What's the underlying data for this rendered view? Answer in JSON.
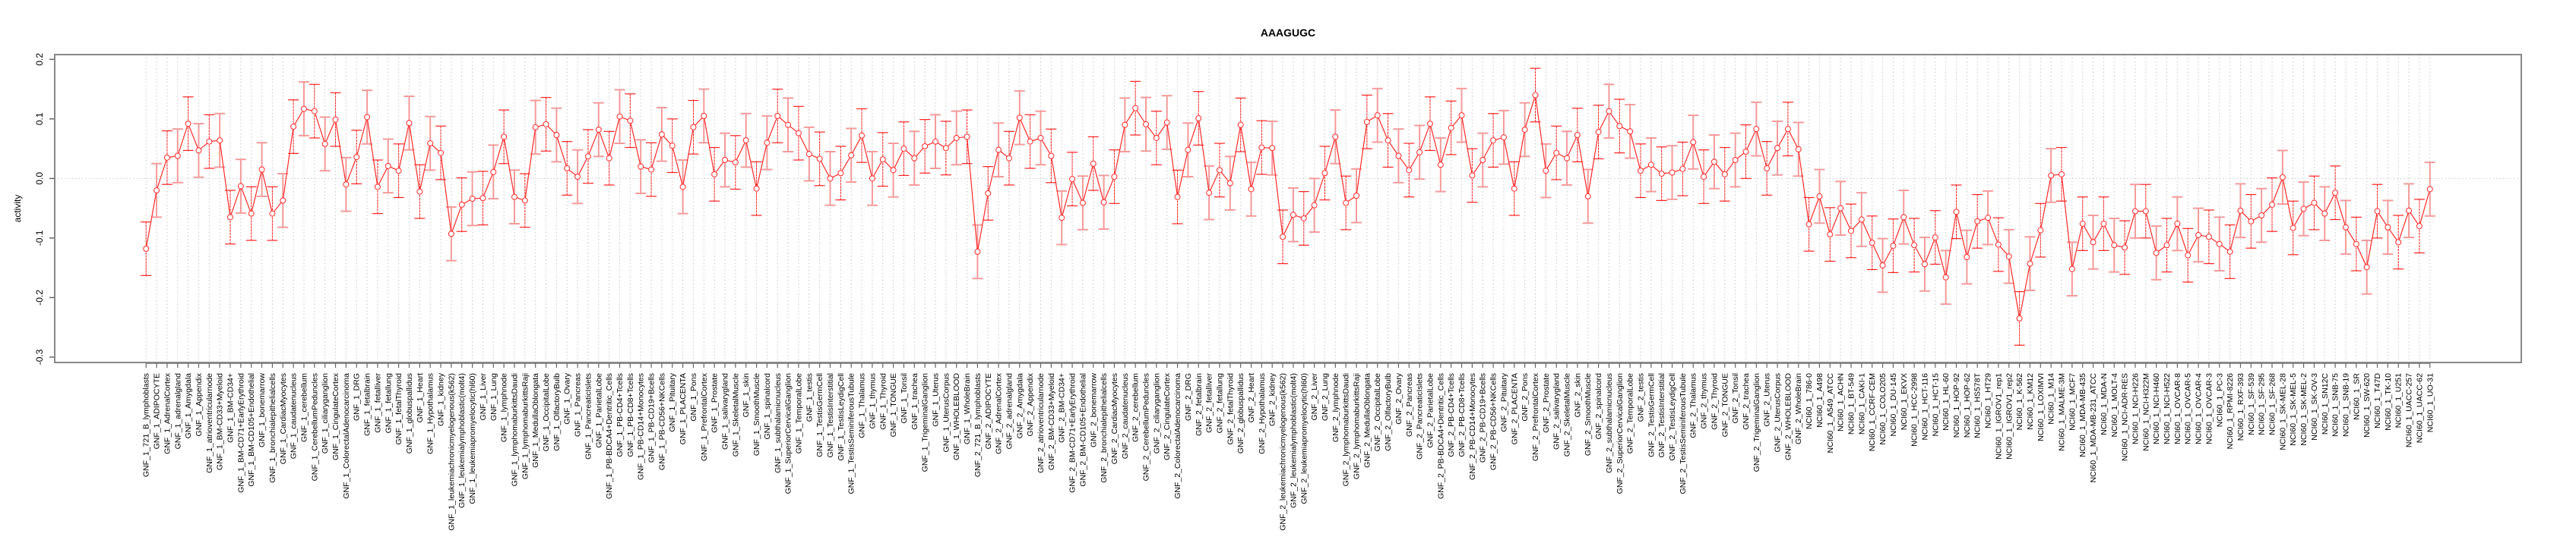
{
  "chart_data": {
    "type": "line",
    "title": "AAAGUGC",
    "xlabel": "",
    "ylabel": "activity",
    "ylim": [
      -0.309,
      0.208
    ],
    "yticks": [
      -0.3,
      -0.2,
      -0.1,
      0.0,
      0.1,
      0.2
    ],
    "ytick_labels": [
      "-0.3",
      "-0.2",
      "-0.1",
      "0.0",
      "0.1",
      "0.2"
    ],
    "grid": "vertical dotted at every category; horizontal dotted at 0",
    "legend": "none",
    "error_halfwidth": 0.045,
    "colors": {
      "line": "#FF2A2A",
      "errorbar_light": "#F49A9A",
      "errorbar_dark": "#FF2020",
      "grid": "#C8C8C8",
      "frame": "#888888"
    },
    "categories": [
      "GNF_1_721_B_lymphoblasts",
      "GNF_1_ADIPOCYTE",
      "GNF_1_AdrenalCortex",
      "GNF_1_adrenalgland",
      "GNF_1_Amygdala",
      "GNF_1_Appendix",
      "GNF_1_atrioventricularnode",
      "GNF_1_BM-CD33+Myeloid",
      "GNF_1_BM-CD34+",
      "GNF_1_BM-CD71+EarlyErythroid",
      "GNF_1_BM-CD105+Endothelial",
      "GNF_1_bonemarrow",
      "GNF_1_bronchialepithelialcells",
      "GNF_1_CardiacMyocytes",
      "GNF_1_caudatenucleus",
      "GNF_1_cerebellum",
      "GNF_1_CerebellumPeduncles",
      "GNF_1_ciliaryganglion",
      "GNF_1_CingulateCortex",
      "GNF_1_ColorectalAdenocarcinoma",
      "GNF_1_DRG",
      "GNF_1_fetalbrain",
      "GNF_1_fetalliver",
      "GNF_1_fetallung",
      "GNF_1_fetalThyroid",
      "GNF_1_globuspallidus",
      "GNF_1_Heart",
      "GNF_1_Hypothalamus",
      "GNF_1_kidney",
      "GNF_1_leukemiachronicmyelogenous(k562)",
      "GNF_1_leukemialymphoblastic(molt4)",
      "GNF_1_leukemiapromyelocytic(hl60)",
      "GNF_1_Liver",
      "GNF_1_Lung",
      "GNF_1_lymphnode",
      "GNF_1_lymphomaburkittsDaudi",
      "GNF_1_lymphomaburkittsRaji",
      "GNF_1_MedullaOblongata",
      "GNF_1_OccipitalLobe",
      "GNF_1_OlfactoryBulb",
      "GNF_1_Ovary",
      "GNF_1_Pancreas",
      "GNF_1_PancreaticIslets",
      "GNF_1_ParietalLobe",
      "GNF_1_PB-BDCA4+Dentritic_Cells",
      "GNF_1_PB-CD4+Tcells",
      "GNF_1_PB-CD8+Tcells",
      "GNF_1_PB-CD14+Monocytes",
      "GNF_1_PB-CD19+Bcells",
      "GNF_1_PB-CD56+NKCells",
      "GNF_1_Pituitary",
      "GNF_1_PLACENTA",
      "GNF_1_Pons",
      "GNF_1_PrefrontalCortex",
      "GNF_1_Prostate",
      "GNF_1_salivarygland",
      "GNF_1_SkeletalMuscle",
      "GNF_1_skin",
      "GNF_1_SmoothMuscle",
      "GNF_1_spinalcord",
      "GNF_1_subthalamicnucleus",
      "GNF_1_SuperiorCervicalGanglion",
      "GNF_1_TemporalLobe",
      "GNF_1_testis",
      "GNF_1_TestisGermCell",
      "GNF_1_TestisInterstitial",
      "GNF_1_TestisLeydigCell",
      "GNF_1_TestisSeminiferousTubule",
      "GNF_1_Thalamus",
      "GNF_1_thymus",
      "GNF_1_Thyroid",
      "GNF_1_TONGUE",
      "GNF_1_Tonsil",
      "GNF_1_trachea",
      "GNF_1_TrigeminalGanglion",
      "GNF_1_Uterus",
      "GNF_1_UterusCorpus",
      "GNF_1_WHOLEBLOOD",
      "GNF_1_WholeBrain",
      "GNF_2_721_B_lymphoblasts",
      "GNF_2_ADIPOCYTE",
      "GNF_2_AdrenalCortex",
      "GNF_2_adrenalgland",
      "GNF_2_Amygdala",
      "GNF_2_Appendix",
      "GNF_2_atrioventricularnode",
      "GNF_2_BM-CD33+Myeloid",
      "GNF_2_BM-CD34+",
      "GNF_2_BM-CD71+EarlyErythroid",
      "GNF_2_BM-CD105+Endothelial",
      "GNF_2_bonemarrow",
      "GNF_2_bronchialepithelialcells",
      "GNF_2_CardiacMyocytes",
      "GNF_2_caudatenucleus",
      "GNF_2_cerebellum",
      "GNF_2_CerebellumPeduncles",
      "GNF_2_ciliaryganglion",
      "GNF_2_CingulateCortex",
      "GNF_2_ColorectalAdenocarcinoma",
      "GNF_2_DRG",
      "GNF_2_fetalbrain",
      "GNF_2_fetalliver",
      "GNF_2_fetallung",
      "GNF_2_fetalThyroid",
      "GNF_2_globuspallidus",
      "GNF_2_Heart",
      "GNF_2_Hypothalamus",
      "GNF_2_kidney",
      "GNF_2_leukemiachronicmyelogenous(k562)",
      "GNF_2_leukemialymphoblastic(molt4)",
      "GNF_2_leukemiapromyelocytic(hl60)",
      "GNF_2_Liver",
      "GNF_2_Lung",
      "GNF_2_lymphnode",
      "GNF_2_lymphomaburkittsDaudi",
      "GNF_2_lymphomaburkittsRaji",
      "GNF_2_MedullaOblongata",
      "GNF_2_OccipitalLobe",
      "GNF_2_OlfactoryBulb",
      "GNF_2_Ovary",
      "GNF_2_Pancreas",
      "GNF_2_PancreaticIslets",
      "GNF_2_ParietalLobe",
      "GNF_2_PB-BDCA4+Dentritic_Cells",
      "GNF_2_PB-CD4+Tcells",
      "GNF_2_PB-CD8+Tcells",
      "GNF_2_PB-CD14+Monocytes",
      "GNF_2_PB-CD19+Bcells",
      "GNF_2_PB-CD56+NKCells",
      "GNF_2_Pituitary",
      "GNF_2_PLACENTA",
      "GNF_2_Pons",
      "GNF_2_PrefrontalCortex",
      "GNF_2_Prostate",
      "GNF_2_salivarygland",
      "GNF_2_SkeletalMuscle",
      "GNF_2_skin",
      "GNF_2_SmoothMuscle",
      "GNF_2_spinalcord",
      "GNF_2_subthalamicnucleus",
      "GNF_2_SuperiorCervicalGanglion",
      "GNF_2_TemporalLobe",
      "GNF_2_testis",
      "GNF_2_TestisGermCell",
      "GNF_2_TestisInterstitial",
      "GNF_2_TestisLeydigCell",
      "GNF_2_TestisSeminiferousTubule",
      "GNF_2_Thalamus",
      "GNF_2_thymus",
      "GNF_2_Thyroid",
      "GNF_2_TONGUE",
      "GNF_2_Tonsil",
      "GNF_2_trachea",
      "GNF_2_TrigeminalGanglion",
      "GNF_2_Uterus",
      "GNF_2_UterusCorpus",
      "GNF_2_WHOLEBLOOD",
      "GNF_2_WholeBrain",
      "NCI60_1_786-0",
      "NCI60_1_A498",
      "NCI60_1_A549_ATCC",
      "NCI60_1_ACHN",
      "NCI60_1_BT-549",
      "NCI60_1_CAKI-1",
      "NCI60_1_CCRF-CEM",
      "NCI60_1_COLO205",
      "NCI60_1_DU-145",
      "NCI60_1_EKVX",
      "NCI60_1_HCC-2998",
      "NCI60_1_HCT-116",
      "NCI60_1_HCT-15",
      "NCI60_1_HL-60",
      "NCI60_1_HOP-92",
      "NCI60_1_HOP-62",
      "NCI60_1_HS578T",
      "NCI60_1_HT29",
      "NCI60_1_IGROV1_rep1",
      "NCI60_1_IGROV1_rep2",
      "NCI60_1_K-562",
      "NCI60_1_KM12",
      "NCI60_1_LOXIMVI",
      "NCI60_1_M14",
      "NCI60_1_MALME-3M",
      "NCI60_1_MCF7",
      "NCI60_1_MDA-MB-435",
      "NCI60_1_MDA-MB-231_ATCC",
      "NCI60_1_MDA-N",
      "NCI60_1_MOLT-4",
      "NCI60_1_NCI-ADR-RES",
      "NCI60_1_NCI-H226",
      "NCI60_1_NCI-H322M",
      "NCI60_1_NCI-H460",
      "NCI60_1_NCI-H522",
      "NCI60_1_OVCAR-8",
      "NCI60_1_OVCAR-5",
      "NCI60_1_OVCAR-4",
      "NCI60_1_OVCAR-3",
      "NCI60_1_PC-3",
      "NCI60_1_RPMI-8226",
      "NCI60_1_RXF-393",
      "NCI60_1_SF-539",
      "NCI60_1_SF-295",
      "NCI60_1_SF-268",
      "NCI60_1_SK-MEL-28",
      "NCI60_1_SK-MEL-5",
      "NCI60_1_SK-MEL-2",
      "NCI60_1_SK-OV-3",
      "NCI60_1_SN12C",
      "NCI60_1_SNB-75",
      "NCI60_1_SNB-19",
      "NCI60_1_SR",
      "NCI60_1_SW-620",
      "NCI60_1_T47D",
      "NCI60_1_TK-10",
      "NCI60_1_U251",
      "NCI60_1_UACC-257",
      "NCI60_1_UACC-62",
      "NCI60_1_UO-31"
    ],
    "values": [
      -0.118,
      -0.02,
      0.035,
      0.038,
      0.092,
      0.047,
      0.062,
      0.064,
      -0.065,
      -0.013,
      -0.059,
      0.015,
      -0.059,
      -0.037,
      0.087,
      0.117,
      0.113,
      0.058,
      0.099,
      -0.01,
      0.036,
      0.103,
      -0.014,
      0.021,
      0.013,
      0.093,
      -0.022,
      0.059,
      0.043,
      -0.093,
      -0.044,
      -0.034,
      -0.033,
      0.011,
      0.07,
      -0.031,
      -0.037,
      0.086,
      0.091,
      0.073,
      0.017,
      0.003,
      0.037,
      0.082,
      0.034,
      0.104,
      0.097,
      0.02,
      0.015,
      0.074,
      0.055,
      -0.014,
      0.086,
      0.105,
      0.007,
      0.031,
      0.027,
      0.064,
      -0.017,
      0.06,
      0.105,
      0.09,
      0.076,
      0.041,
      0.033,
      0.0,
      0.009,
      0.039,
      0.072,
      0.0,
      0.032,
      0.014,
      0.05,
      0.034,
      0.054,
      0.062,
      0.051,
      0.068,
      0.07,
      -0.123,
      -0.025,
      0.048,
      0.034,
      0.102,
      0.062,
      0.068,
      0.038,
      -0.066,
      -0.001,
      -0.041,
      0.025,
      -0.04,
      0.003,
      0.09,
      0.118,
      0.091,
      0.068,
      0.094,
      -0.031,
      0.048,
      0.101,
      -0.024,
      0.014,
      -0.008,
      0.09,
      -0.018,
      0.052,
      0.051,
      -0.098,
      -0.061,
      -0.067,
      -0.045,
      0.009,
      0.07,
      -0.041,
      -0.029,
      0.095,
      0.106,
      0.064,
      0.038,
      0.014,
      0.044,
      0.092,
      0.023,
      0.085,
      0.106,
      0.005,
      0.031,
      0.064,
      0.069,
      -0.017,
      0.082,
      0.14,
      0.013,
      0.043,
      0.034,
      0.073,
      -0.03,
      0.078,
      0.113,
      0.088,
      0.079,
      0.013,
      0.023,
      0.008,
      0.01,
      0.016,
      0.061,
      0.003,
      0.028,
      0.007,
      0.031,
      0.045,
      0.083,
      0.017,
      0.051,
      0.083,
      0.049,
      -0.077,
      -0.03,
      -0.094,
      -0.05,
      -0.088,
      -0.069,
      -0.108,
      -0.146,
      -0.113,
      -0.065,
      -0.112,
      -0.144,
      -0.099,
      -0.166,
      -0.056,
      -0.132,
      -0.072,
      -0.066,
      -0.111,
      -0.131,
      -0.235,
      -0.143,
      -0.087,
      0.005,
      0.007,
      -0.152,
      -0.076,
      -0.107,
      -0.076,
      -0.112,
      -0.116,
      -0.055,
      -0.055,
      -0.125,
      -0.112,
      -0.076,
      -0.129,
      -0.095,
      -0.098,
      -0.11,
      -0.123,
      -0.054,
      -0.072,
      -0.062,
      -0.044,
      0.002,
      -0.083,
      -0.051,
      -0.041,
      -0.059,
      -0.024,
      -0.082,
      -0.11,
      -0.149,
      -0.055,
      -0.082,
      -0.107,
      -0.054,
      -0.08,
      -0.018
    ]
  }
}
